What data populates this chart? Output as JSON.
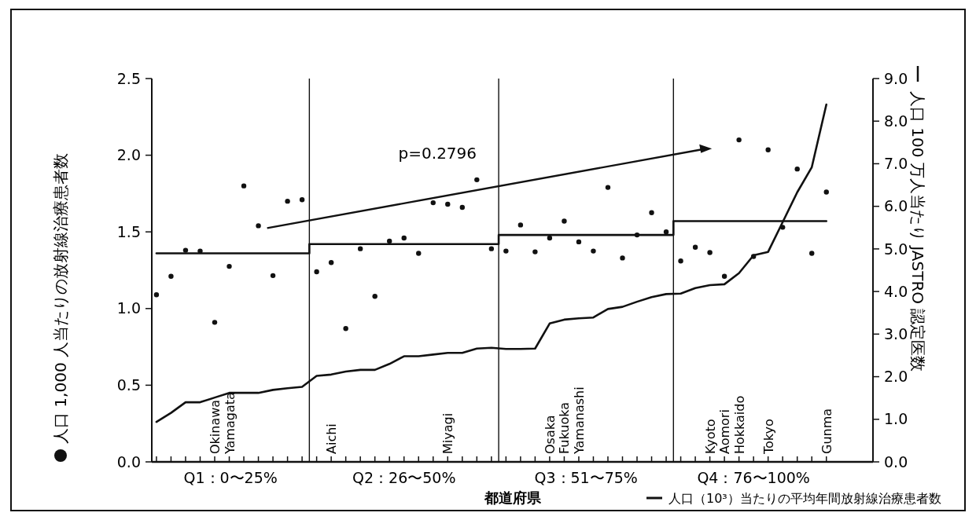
{
  "chart_data": {
    "type": "scatter",
    "xlabel": "都道府県",
    "ylabel": "人口 1,000 人当たりの放射線治療患者数",
    "y2label": "人口 100 万人当たり JASTRO 認定医数",
    "categories": [
      null,
      null,
      null,
      null,
      "Okinawa",
      "Yamagata",
      null,
      null,
      null,
      null,
      null,
      null,
      "Aichi",
      null,
      null,
      null,
      null,
      null,
      null,
      null,
      "Miyagi",
      null,
      null,
      null,
      null,
      null,
      null,
      "Osaka",
      "Fukuoka",
      "Yamanashi",
      null,
      null,
      null,
      null,
      null,
      null,
      null,
      null,
      "Kyoto",
      "Aomori",
      "Hokkaido",
      null,
      "Tokyo",
      null,
      null,
      null,
      "Gunma"
    ],
    "series": [
      {
        "color": "#111111",
        "marker": "circle",
        "values": [
          1.09,
          1.21,
          1.38,
          1.375,
          0.91,
          1.275,
          1.8,
          1.54,
          1.215,
          1.7,
          1.71,
          1.24,
          1.3,
          0.87,
          1.39,
          1.08,
          1.44,
          1.46,
          1.36,
          1.69,
          1.68,
          1.66,
          1.84,
          1.39,
          1.375,
          1.545,
          1.37,
          1.46,
          1.57,
          1.435,
          1.375,
          1.79,
          1.33,
          1.48,
          1.625,
          1.5,
          1.31,
          1.4,
          1.365,
          1.21,
          2.1,
          1.34,
          2.035,
          1.53,
          1.91,
          1.36,
          1.76
        ]
      },
      {
        "type": "line",
        "axis": "y2",
        "color": "#111111",
        "values": [
          0.94,
          1.15,
          1.4,
          1.4,
          1.51,
          1.62,
          1.62,
          1.62,
          1.69,
          1.73,
          1.76,
          2.02,
          2.05,
          2.12,
          2.16,
          2.16,
          2.3,
          2.48,
          2.48,
          2.52,
          2.56,
          2.56,
          2.66,
          2.68,
          2.65,
          2.65,
          2.66,
          3.25,
          3.34,
          3.37,
          3.39,
          3.59,
          3.64,
          3.76,
          3.87,
          3.94,
          3.95,
          4.08,
          4.15,
          4.17,
          4.43,
          4.85,
          4.93,
          5.63,
          6.33,
          6.92,
          8.39
        ]
      },
      {
        "type": "step",
        "name": "人口（10³）当たりの平均年間放射線治療患者数",
        "color": "#111111",
        "values": [
          1.36,
          1.36,
          1.36,
          1.36,
          1.36,
          1.36,
          1.36,
          1.36,
          1.36,
          1.36,
          1.36,
          1.42,
          1.42,
          1.42,
          1.42,
          1.42,
          1.42,
          1.42,
          1.42,
          1.42,
          1.42,
          1.42,
          1.42,
          1.42,
          1.48,
          1.48,
          1.48,
          1.48,
          1.48,
          1.48,
          1.48,
          1.48,
          1.48,
          1.48,
          1.48,
          1.48,
          1.57,
          1.57,
          1.57,
          1.57,
          1.57,
          1.57,
          1.57,
          1.57,
          1.57,
          1.57,
          1.57
        ]
      }
    ],
    "ylim": [
      0,
      2.5
    ],
    "yticks": [
      {
        "value": 0,
        "label": "0.0"
      },
      0.5,
      {
        "value": 1,
        "label": "1.0"
      },
      1.5,
      {
        "value": 2,
        "label": "2.0"
      },
      2.5
    ],
    "y2lim": [
      0,
      9
    ],
    "y2ticks": [
      {
        "value": 0,
        "label": "0.0"
      },
      {
        "value": 1,
        "label": "1.0"
      },
      {
        "value": 2,
        "label": "2.0"
      },
      {
        "value": 3,
        "label": "3.0"
      },
      {
        "value": 4,
        "label": "4.0"
      },
      {
        "value": 5,
        "label": "5.0"
      },
      {
        "value": 6,
        "label": "6.0"
      },
      {
        "value": 7,
        "label": "7.0"
      },
      {
        "value": 8,
        "label": "8.0"
      },
      {
        "value": 9,
        "label": "9.0"
      }
    ],
    "annotations": [
      "p=0.2796",
      "Q1：0〜25%",
      "Q2：26〜50%",
      "Q3：51〜75%",
      "Q4：76〜100%"
    ],
    "legend": "bottom right",
    "grid": false
  }
}
